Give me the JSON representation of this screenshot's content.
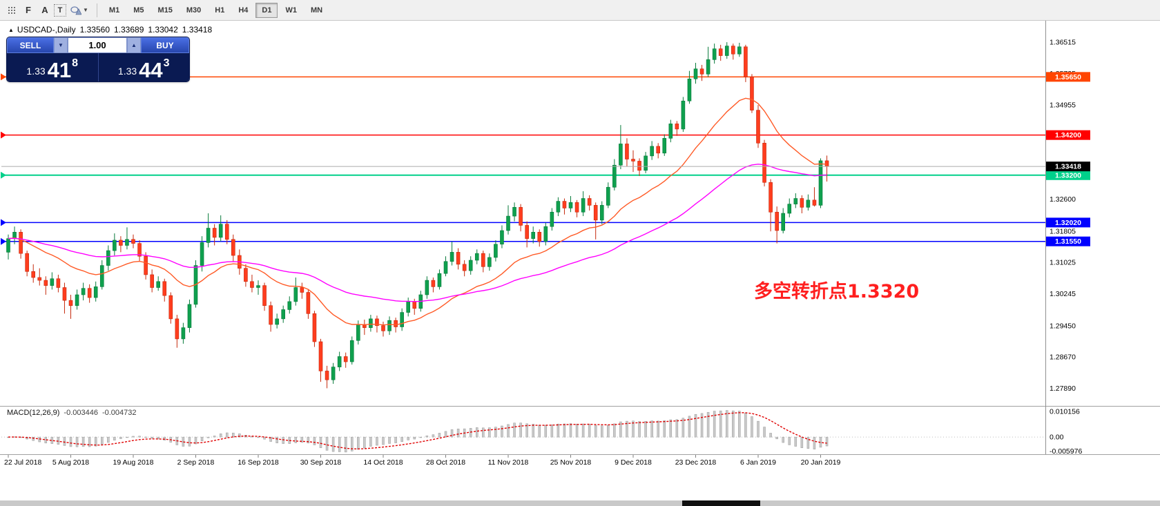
{
  "toolbar": {
    "icon_f": "F",
    "icon_a": "A",
    "icon_t": "T",
    "timeframes": [
      "M1",
      "M5",
      "M15",
      "M30",
      "H1",
      "H4",
      "D1",
      "W1",
      "MN"
    ],
    "active_timeframe": "D1"
  },
  "chart_header": {
    "symbol_period": "USDCAD-,Daily",
    "open": "1.33560",
    "high": "1.33689",
    "low": "1.33042",
    "close": "1.33418"
  },
  "trade_widget": {
    "sell_label": "SELL",
    "buy_label": "BUY",
    "lot_value": "1.00",
    "sell_price": {
      "prefix": "1.33",
      "big": "41",
      "sup": "8"
    },
    "buy_price": {
      "prefix": "1.33",
      "big": "44",
      "sup": "3"
    }
  },
  "annotation": {
    "text": "多空转折点1.3320",
    "color": "#FF1F1F"
  },
  "price_axis": {
    "labels": [
      "1.36515",
      "1.35735",
      "1.34955",
      "1.34175",
      "1.33395",
      "1.32600",
      "1.31805",
      "1.31025",
      "1.30245",
      "1.29450",
      "1.28670",
      "1.27890"
    ]
  },
  "levels": [
    {
      "price": 1.3565,
      "label": "1.35650",
      "color": "#FF4500",
      "width": 1.5
    },
    {
      "price": 1.342,
      "label": "1.34200",
      "color": "#FF0000",
      "width": 1.5
    },
    {
      "price": 1.332,
      "label": "1.33200",
      "color": "#00D08A",
      "width": 2
    },
    {
      "price": 1.3202,
      "label": "1.32020",
      "color": "#0000FF",
      "width": 1.5
    },
    {
      "price": 1.3155,
      "label": "1.31550",
      "color": "#0000FF",
      "width": 1.5
    }
  ],
  "current_price": {
    "value": 1.33418,
    "label": "1.33418"
  },
  "macd": {
    "label": "MACD(12,26,9)",
    "value_main": "-0.003446",
    "value_signal": "-0.004732",
    "axis_labels": [
      "0.010156",
      "0.00",
      "-0.005976"
    ],
    "params": {
      "fast": 12,
      "slow": 26,
      "signal": 9
    }
  },
  "time_axis": {
    "labels": [
      "22 Jul 2018",
      "5 Aug 2018",
      "19 Aug 2018",
      "2 Sep 2018",
      "16 Sep 2018",
      "30 Sep 2018",
      "14 Oct 2018",
      "28 Oct 2018",
      "11 Nov 2018",
      "25 Nov 2018",
      "9 Dec 2018",
      "23 Dec 2018",
      "6 Jan 2019",
      "20 Jan 2019"
    ]
  },
  "chart_data": {
    "type": "candlestick",
    "symbol": "USDCAD-",
    "period": "Daily",
    "price_range": [
      1.2745,
      1.3705
    ],
    "up_color": "#0FA04E",
    "up_stroke": "#077A3A",
    "down_color": "#FF3D1E",
    "down_stroke": "#C5290C",
    "ma_fast": {
      "period": 20,
      "color": "#FF5A26"
    },
    "ma_slow": {
      "period": 55,
      "color": "#FF00FF"
    },
    "candles": [
      [
        1.3128,
        1.3172,
        1.311,
        1.3162
      ],
      [
        1.3162,
        1.3192,
        1.3148,
        1.3178
      ],
      [
        1.3178,
        1.3185,
        1.3112,
        1.3125
      ],
      [
        1.3125,
        1.3132,
        1.3068,
        1.308
      ],
      [
        1.308,
        1.3098,
        1.3052,
        1.3065
      ],
      [
        1.3065,
        1.3088,
        1.3045,
        1.3058
      ],
      [
        1.3058,
        1.3068,
        1.3022,
        1.3045
      ],
      [
        1.3045,
        1.3078,
        1.3035,
        1.3062
      ],
      [
        1.3062,
        1.3072,
        1.3028,
        1.304
      ],
      [
        1.304,
        1.3052,
        1.2975,
        1.3008
      ],
      [
        1.3008,
        1.3022,
        1.2962,
        1.2995
      ],
      [
        1.2995,
        1.3035,
        1.2985,
        1.3022
      ],
      [
        1.3022,
        1.3052,
        1.3008,
        1.3038
      ],
      [
        1.3038,
        1.3048,
        1.3002,
        1.3015
      ],
      [
        1.3015,
        1.3055,
        1.3005,
        1.3042
      ],
      [
        1.3042,
        1.3108,
        1.3035,
        1.3095
      ],
      [
        1.3095,
        1.3145,
        1.3082,
        1.3132
      ],
      [
        1.3132,
        1.3175,
        1.312,
        1.3158
      ],
      [
        1.3158,
        1.3168,
        1.3128,
        1.3145
      ],
      [
        1.3145,
        1.319,
        1.3135,
        1.316
      ],
      [
        1.316,
        1.3172,
        1.3138,
        1.315
      ],
      [
        1.315,
        1.3158,
        1.3105,
        1.3118
      ],
      [
        1.3118,
        1.3128,
        1.306,
        1.3072
      ],
      [
        1.3072,
        1.3085,
        1.3028,
        1.304
      ],
      [
        1.304,
        1.3068,
        1.3032,
        1.3055
      ],
      [
        1.3055,
        1.3062,
        1.3005,
        1.302
      ],
      [
        1.302,
        1.3028,
        1.295,
        1.2962
      ],
      [
        1.2962,
        1.2972,
        1.289,
        1.2912
      ],
      [
        1.2912,
        1.2952,
        1.29,
        1.294
      ],
      [
        1.294,
        1.301,
        1.2928,
        1.2998
      ],
      [
        1.2998,
        1.3108,
        1.299,
        1.3095
      ],
      [
        1.3095,
        1.3168,
        1.308,
        1.3152
      ],
      [
        1.3152,
        1.3225,
        1.314,
        1.3188
      ],
      [
        1.3188,
        1.3198,
        1.3145,
        1.3165
      ],
      [
        1.3165,
        1.322,
        1.3155,
        1.3198
      ],
      [
        1.3198,
        1.3208,
        1.3148,
        1.316
      ],
      [
        1.316,
        1.3172,
        1.3105,
        1.312
      ],
      [
        1.312,
        1.3135,
        1.3072,
        1.3088
      ],
      [
        1.3088,
        1.3098,
        1.3042,
        1.3055
      ],
      [
        1.3055,
        1.3072,
        1.3028,
        1.304
      ],
      [
        1.304,
        1.3058,
        1.3022,
        1.3045
      ],
      [
        1.3045,
        1.3052,
        1.2982,
        1.2995
      ],
      [
        1.2995,
        1.3005,
        1.293,
        1.2948
      ],
      [
        1.2948,
        1.2975,
        1.2938,
        1.2962
      ],
      [
        1.2962,
        1.2995,
        1.2952,
        1.2985
      ],
      [
        1.2985,
        1.3018,
        1.2975,
        1.3005
      ],
      [
        1.3005,
        1.3065,
        1.2995,
        1.304
      ],
      [
        1.304,
        1.3052,
        1.3012,
        1.3028
      ],
      [
        1.3028,
        1.3035,
        1.2962,
        1.2975
      ],
      [
        1.2975,
        1.2982,
        1.2892,
        1.2905
      ],
      [
        1.2905,
        1.2912,
        1.2805,
        1.2832
      ],
      [
        1.2832,
        1.2845,
        1.2789,
        1.281
      ],
      [
        1.281,
        1.2852,
        1.28,
        1.2842
      ],
      [
        1.2842,
        1.288,
        1.2832,
        1.2868
      ],
      [
        1.2868,
        1.2878,
        1.284,
        1.2855
      ],
      [
        1.2855,
        1.2918,
        1.2848,
        1.2908
      ],
      [
        1.2908,
        1.2958,
        1.2898,
        1.2948
      ],
      [
        1.2948,
        1.296,
        1.2922,
        1.294
      ],
      [
        1.294,
        1.2972,
        1.293,
        1.2962
      ],
      [
        1.2962,
        1.297,
        1.2928,
        1.2945
      ],
      [
        1.2945,
        1.2955,
        1.2918,
        1.2932
      ],
      [
        1.2932,
        1.2968,
        1.2922,
        1.2958
      ],
      [
        1.2958,
        1.2965,
        1.2928,
        1.2942
      ],
      [
        1.2942,
        1.2988,
        1.2932,
        1.2978
      ],
      [
        1.2978,
        1.3015,
        1.2968,
        1.3005
      ],
      [
        1.3005,
        1.3012,
        1.2972,
        1.2988
      ],
      [
        1.2988,
        1.3032,
        1.298,
        1.3022
      ],
      [
        1.3022,
        1.3068,
        1.3012,
        1.3058
      ],
      [
        1.3058,
        1.3065,
        1.3028,
        1.3042
      ],
      [
        1.3042,
        1.3085,
        1.3035,
        1.3075
      ],
      [
        1.3075,
        1.3118,
        1.3068,
        1.3105
      ],
      [
        1.3105,
        1.3155,
        1.3095,
        1.3128
      ],
      [
        1.3128,
        1.3138,
        1.3085,
        1.3098
      ],
      [
        1.3098,
        1.3108,
        1.3068,
        1.3082
      ],
      [
        1.3082,
        1.3118,
        1.3072,
        1.3108
      ],
      [
        1.3108,
        1.3135,
        1.3098,
        1.3125
      ],
      [
        1.3125,
        1.3132,
        1.3078,
        1.3092
      ],
      [
        1.3092,
        1.3125,
        1.3082,
        1.3115
      ],
      [
        1.3115,
        1.3158,
        1.3105,
        1.3148
      ],
      [
        1.3148,
        1.3195,
        1.3138,
        1.3182
      ],
      [
        1.3182,
        1.3245,
        1.3172,
        1.3218
      ],
      [
        1.3218,
        1.3252,
        1.3205,
        1.324
      ],
      [
        1.324,
        1.3248,
        1.318,
        1.3195
      ],
      [
        1.3195,
        1.3205,
        1.314,
        1.3162
      ],
      [
        1.3162,
        1.3192,
        1.315,
        1.3178
      ],
      [
        1.3178,
        1.3185,
        1.3142,
        1.3155
      ],
      [
        1.3155,
        1.3202,
        1.3145,
        1.3192
      ],
      [
        1.3192,
        1.3238,
        1.3182,
        1.3228
      ],
      [
        1.3228,
        1.3265,
        1.3218,
        1.3255
      ],
      [
        1.3255,
        1.3262,
        1.3222,
        1.3238
      ],
      [
        1.3238,
        1.3268,
        1.3228,
        1.3252
      ],
      [
        1.3252,
        1.3258,
        1.3215,
        1.3228
      ],
      [
        1.3228,
        1.328,
        1.3218,
        1.3262
      ],
      [
        1.3262,
        1.327,
        1.3232,
        1.3245
      ],
      [
        1.3245,
        1.3252,
        1.316,
        1.3208
      ],
      [
        1.3208,
        1.3255,
        1.3198,
        1.3245
      ],
      [
        1.3245,
        1.3302,
        1.3238,
        1.329
      ],
      [
        1.329,
        1.336,
        1.3282,
        1.3345
      ],
      [
        1.3345,
        1.3445,
        1.3335,
        1.3398
      ],
      [
        1.3398,
        1.3412,
        1.3342,
        1.336
      ],
      [
        1.336,
        1.3382,
        1.3328,
        1.3355
      ],
      [
        1.3355,
        1.3362,
        1.3318,
        1.3332
      ],
      [
        1.3332,
        1.3378,
        1.3325,
        1.3368
      ],
      [
        1.3368,
        1.3405,
        1.3358,
        1.3392
      ],
      [
        1.3392,
        1.34,
        1.3362,
        1.3375
      ],
      [
        1.3375,
        1.3422,
        1.3368,
        1.3412
      ],
      [
        1.3412,
        1.3458,
        1.3402,
        1.3448
      ],
      [
        1.3448,
        1.3455,
        1.3418,
        1.3435
      ],
      [
        1.3435,
        1.3515,
        1.3428,
        1.3505
      ],
      [
        1.3505,
        1.358,
        1.3498,
        1.356
      ],
      [
        1.356,
        1.36,
        1.3548,
        1.3585
      ],
      [
        1.3585,
        1.3595,
        1.3555,
        1.3572
      ],
      [
        1.3572,
        1.364,
        1.3565,
        1.3608
      ],
      [
        1.3608,
        1.3648,
        1.3598,
        1.3635
      ],
      [
        1.3635,
        1.3645,
        1.3605,
        1.3618
      ],
      [
        1.3618,
        1.36515,
        1.361,
        1.3642
      ],
      [
        1.3642,
        1.3648,
        1.3608,
        1.3622
      ],
      [
        1.3622,
        1.365,
        1.3615,
        1.364
      ],
      [
        1.364,
        1.3645,
        1.3552,
        1.3565
      ],
      [
        1.3565,
        1.3572,
        1.3475,
        1.3482
      ],
      [
        1.3482,
        1.3495,
        1.3388,
        1.34
      ],
      [
        1.34,
        1.3408,
        1.3292,
        1.3302
      ],
      [
        1.3302,
        1.331,
        1.318,
        1.3228
      ],
      [
        1.3228,
        1.3242,
        1.315,
        1.3182
      ],
      [
        1.3182,
        1.3238,
        1.3175,
        1.3225
      ],
      [
        1.3225,
        1.3262,
        1.3215,
        1.3248
      ],
      [
        1.3248,
        1.3275,
        1.3238,
        1.3262
      ],
      [
        1.3262,
        1.327,
        1.3225,
        1.324
      ],
      [
        1.324,
        1.3272,
        1.3232,
        1.3258
      ],
      [
        1.3258,
        1.329,
        1.3242,
        1.3245
      ],
      [
        1.3245,
        1.3362,
        1.3238,
        1.3356
      ],
      [
        1.3356,
        1.33689,
        1.33042,
        1.33418
      ]
    ]
  }
}
